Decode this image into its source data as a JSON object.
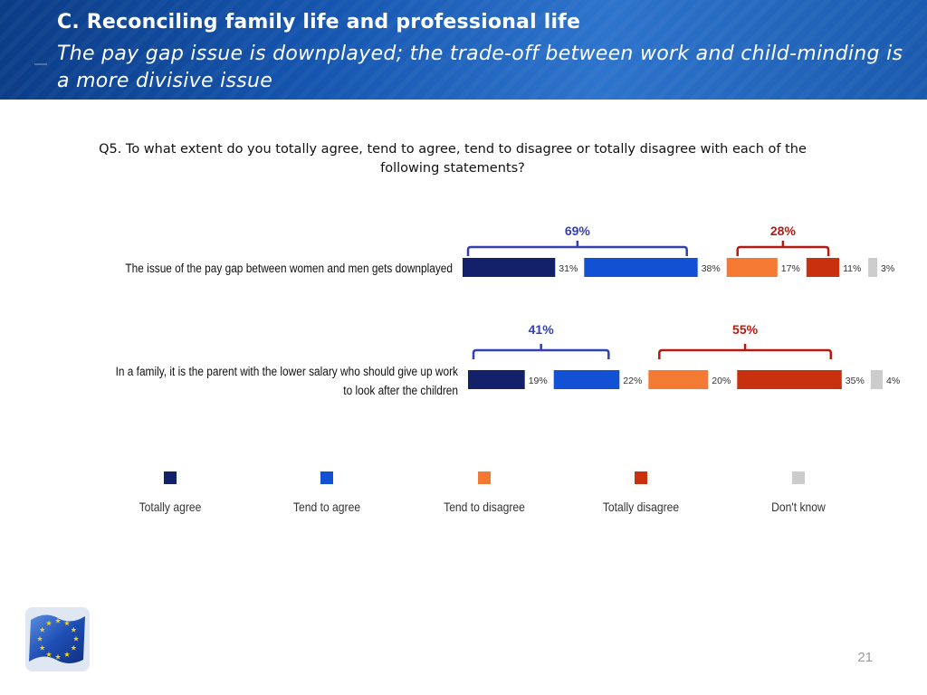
{
  "header": {
    "title": "C. Reconciling family life and professional life",
    "subtitle": "The pay gap issue is downplayed; the trade-off between work and child-minding is a more divisive issue"
  },
  "question": "Q5. To what extent do you totally agree, tend to agree, tend to disagree or totally disagree with each of the following statements?",
  "page_number": "21",
  "colors": {
    "totally_agree": "#13216a",
    "tend_to_agree": "#1250d4",
    "tend_to_disagree": "#f47a33",
    "totally_disagree": "#c9300d",
    "dont_know": "#cccccc",
    "agree_bracket": "#3440b0",
    "disagree_bracket": "#b41a10"
  },
  "chart_data": {
    "type": "bar",
    "stacked": true,
    "orientation": "horizontal",
    "categories": [
      [
        "The issue of the pay gap between women and men gets downplayed"
      ],
      [
        "In a family, it is the parent with the lower salary who should give up work",
        "to look after the children"
      ]
    ],
    "series": [
      {
        "name": "Totally agree",
        "values": [
          31,
          19
        ],
        "labels": [
          "31%",
          "19%"
        ]
      },
      {
        "name": "Tend to agree",
        "values": [
          38,
          22
        ],
        "labels": [
          "38%",
          "22%"
        ]
      },
      {
        "name": "Tend to disagree",
        "values": [
          17,
          20
        ],
        "labels": [
          "17%",
          "20%"
        ]
      },
      {
        "name": "Totally disagree",
        "values": [
          11,
          35
        ],
        "labels": [
          "11%",
          "35%"
        ]
      },
      {
        "name": "Don't know",
        "values": [
          3,
          4
        ],
        "labels": [
          "3%",
          "4%"
        ]
      }
    ],
    "totals": [
      {
        "agree": "69%",
        "disagree": "28%"
      },
      {
        "agree": "41%",
        "disagree": "55%"
      }
    ],
    "legend": [
      "Totally agree",
      "Tend to agree",
      "Tend to disagree",
      "Totally disagree",
      "Don't know"
    ],
    "legend_position": "bottom"
  }
}
